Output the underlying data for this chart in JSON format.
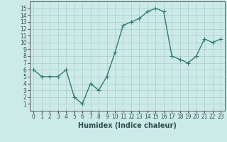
{
  "x": [
    0,
    1,
    2,
    3,
    4,
    5,
    6,
    7,
    8,
    9,
    10,
    11,
    12,
    13,
    14,
    15,
    16,
    17,
    18,
    19,
    20,
    21,
    22,
    23
  ],
  "y": [
    6,
    5,
    5,
    5,
    6,
    2,
    1,
    4,
    3,
    5,
    8.5,
    12.5,
    13,
    13.5,
    14.5,
    15,
    14.5,
    8,
    7.5,
    7,
    8,
    10.5,
    10,
    10.5
  ],
  "line_color": "#2e7d72",
  "marker": "+",
  "marker_size": 4,
  "bg_color": "#cceae8",
  "grid_color": "#aacccc",
  "xlabel": "Humidex (Indice chaleur)",
  "xlim": [
    -0.5,
    23.5
  ],
  "ylim": [
    0,
    16
  ],
  "yticks": [
    1,
    2,
    3,
    4,
    5,
    6,
    7,
    8,
    9,
    10,
    11,
    12,
    13,
    14,
    15
  ],
  "xticks": [
    0,
    1,
    2,
    3,
    4,
    5,
    6,
    7,
    8,
    9,
    10,
    11,
    12,
    13,
    14,
    15,
    16,
    17,
    18,
    19,
    20,
    21,
    22,
    23
  ],
  "tick_fontsize": 5.5,
  "xlabel_fontsize": 7,
  "line_width": 1.0
}
